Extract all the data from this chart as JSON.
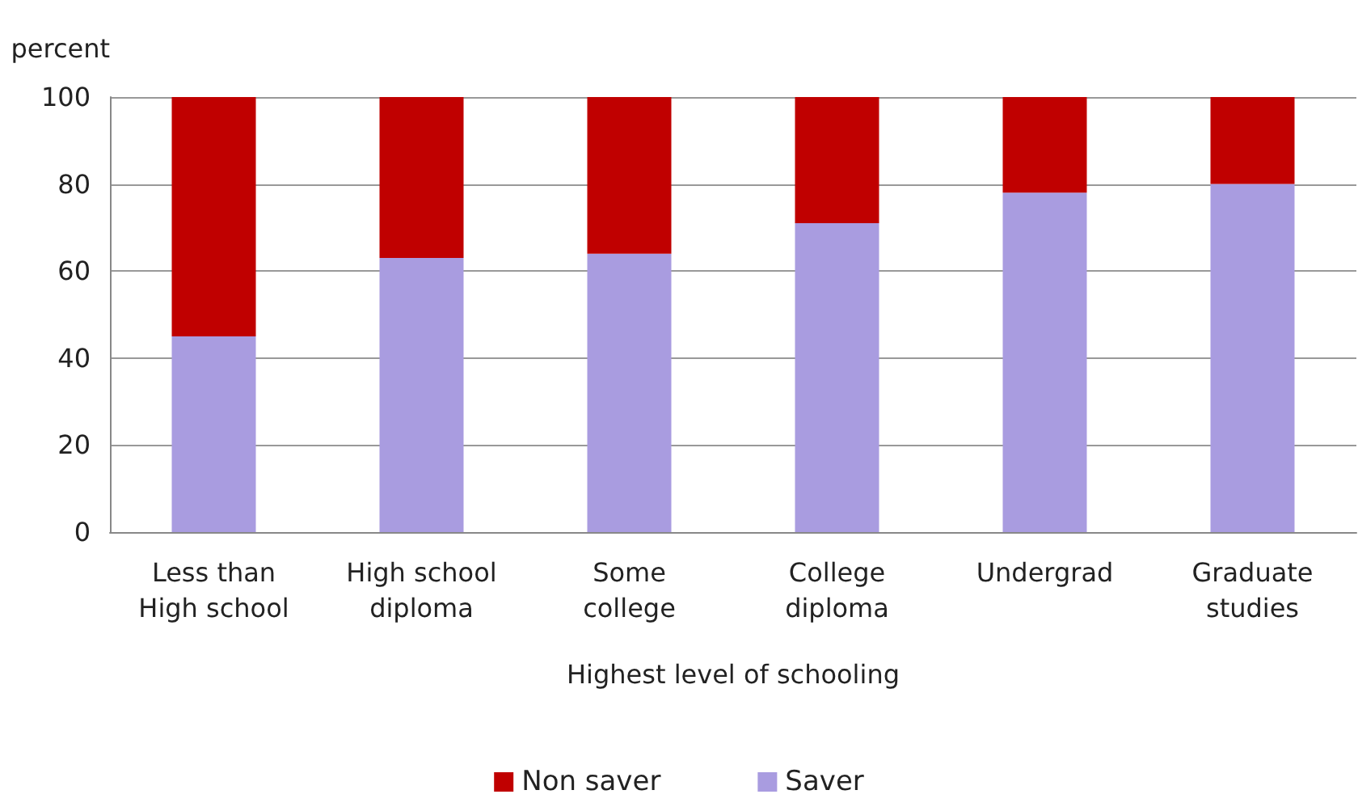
{
  "chart_data": {
    "type": "bar",
    "stacked": true,
    "ylabel": "percent",
    "xlabel": "Highest level of schooling",
    "categories": [
      "Less than\nHigh school",
      "High school\ndiploma",
      "Some\ncollege",
      "College\ndiploma",
      "Undergrad",
      "Graduate\nstudies"
    ],
    "series": [
      {
        "name": "Saver",
        "color": "#a99ce0",
        "values": [
          45,
          63,
          64,
          71,
          78,
          80
        ]
      },
      {
        "name": "Non saver",
        "color": "#c00000",
        "values": [
          55,
          37,
          36,
          29,
          22,
          20
        ]
      }
    ],
    "ylim": [
      0,
      100
    ],
    "yticks": [
      0,
      20,
      40,
      60,
      80,
      100
    ],
    "grid": "y",
    "legend": "bottom"
  }
}
